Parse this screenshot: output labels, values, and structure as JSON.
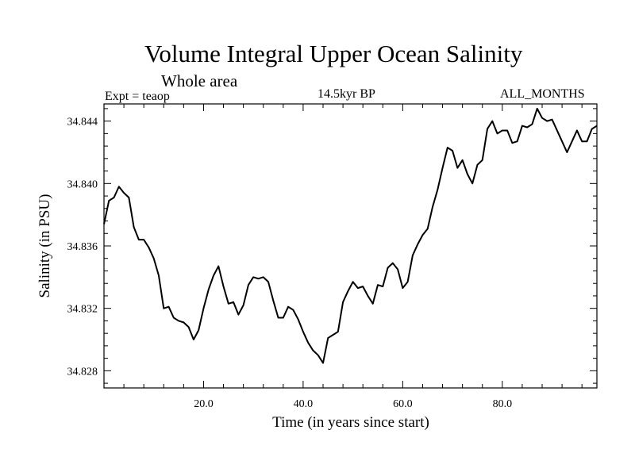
{
  "chart_data": {
    "type": "line",
    "title": "Volume Integral Upper Ocean Salinity",
    "subtitle": "Whole area",
    "left_label": "Expt = teaop",
    "center_label": "14.5kyr BP",
    "right_label": "ALL_MONTHS",
    "xlabel": "Time (in years since start)",
    "ylabel": "Salinity (in PSU)",
    "xlim": [
      0,
      99
    ],
    "ylim": [
      34.8269,
      34.8451
    ],
    "x_ticks": [
      20,
      40,
      60,
      80
    ],
    "x_tick_labels": [
      "20.0",
      "40.0",
      "60.0",
      "80.0"
    ],
    "y_ticks": [
      34.828,
      34.832,
      34.836,
      34.84,
      34.844
    ],
    "y_tick_labels": [
      "34.828",
      "34.832",
      "34.836",
      "34.840",
      "34.844"
    ],
    "series": [
      {
        "name": "salinity",
        "x": [
          0,
          1,
          2,
          3,
          4,
          5,
          6,
          7,
          8,
          9,
          10,
          11,
          12,
          13,
          14,
          15,
          16,
          17,
          18,
          19,
          20,
          21,
          22,
          23,
          24,
          25,
          26,
          27,
          28,
          29,
          30,
          31,
          32,
          33,
          34,
          35,
          36,
          37,
          38,
          39,
          40,
          41,
          42,
          43,
          44,
          45,
          46,
          47,
          48,
          49,
          50,
          51,
          52,
          53,
          54,
          55,
          56,
          57,
          58,
          59,
          60,
          61,
          62,
          63,
          64,
          65,
          66,
          67,
          68,
          69,
          70,
          71,
          72,
          73,
          74,
          75,
          76,
          77,
          78,
          79,
          80,
          81,
          82,
          83,
          84,
          85,
          86,
          87,
          88,
          89,
          90,
          91,
          92,
          93,
          94,
          95,
          96,
          97,
          98,
          99
        ],
        "values": [
          34.8374,
          34.8389,
          34.8391,
          34.8398,
          34.8394,
          34.8391,
          34.8372,
          34.8364,
          34.8364,
          34.8359,
          34.8352,
          34.8341,
          34.832,
          34.8321,
          34.8314,
          34.8312,
          34.8311,
          34.8308,
          34.83,
          34.8306,
          34.832,
          34.8332,
          34.8341,
          34.8347,
          34.8334,
          34.8323,
          34.8324,
          34.8316,
          34.8322,
          34.8335,
          34.834,
          34.8339,
          34.834,
          34.8337,
          34.8325,
          34.8314,
          34.8314,
          34.8321,
          34.8319,
          34.8313,
          34.8305,
          34.8298,
          34.8293,
          34.829,
          34.8285,
          34.8301,
          34.8303,
          34.8305,
          34.8324,
          34.8331,
          34.8337,
          34.8333,
          34.8334,
          34.8328,
          34.8323,
          34.8335,
          34.8334,
          34.8346,
          34.8349,
          34.8345,
          34.8333,
          34.8337,
          34.8354,
          34.8361,
          34.8367,
          34.8371,
          34.8385,
          34.8396,
          34.841,
          34.8423,
          34.8421,
          34.841,
          34.8415,
          34.8406,
          34.84,
          34.8412,
          34.8415,
          34.8435,
          34.844,
          34.8432,
          34.8434,
          34.8434,
          34.8426,
          34.8427,
          34.8437,
          34.8436,
          34.8438,
          34.8448,
          34.8442,
          34.844,
          34.8441,
          34.8434,
          34.8427,
          34.842,
          34.8427,
          34.8434,
          34.8427,
          34.8427,
          34.8435,
          34.8437
        ]
      }
    ]
  }
}
